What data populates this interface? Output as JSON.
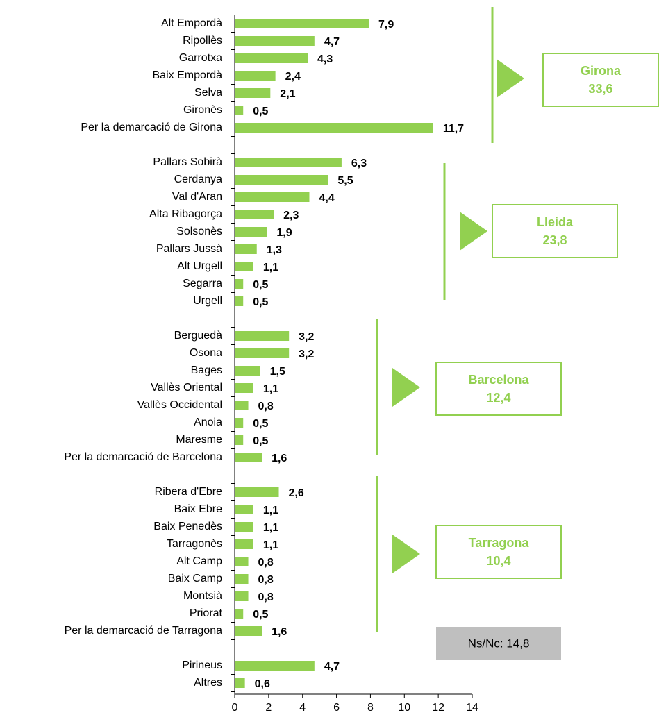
{
  "chart_data": {
    "type": "barh",
    "categories": [
      "Alt Empordà",
      "Ripollès",
      "Garrotxa",
      "Baix Empordà",
      "Selva",
      "Gironès",
      "Per la demarcació de Girona",
      null,
      "Pallars Sobirà",
      "Cerdanya",
      "Val d'Aran",
      "Alta Ribagorça",
      "Solsonès",
      "Pallars Jussà",
      "Alt Urgell",
      "Segarra",
      "Urgell",
      null,
      "Berguedà",
      "Osona",
      "Bages",
      "Vallès Oriental",
      "Vallès Occidental",
      "Anoia",
      "Maresme",
      "Per la demarcació de Barcelona",
      null,
      "Ribera d'Ebre",
      "Baix Ebre",
      "Baix Penedès",
      "Tarragonès",
      "Alt Camp",
      "Baix Camp",
      "Montsià",
      "Priorat",
      "Per la demarcació de Tarragona",
      null,
      "Pirineus",
      "Altres"
    ],
    "values": [
      7.9,
      4.7,
      4.3,
      2.4,
      2.1,
      0.5,
      11.7,
      null,
      6.3,
      5.5,
      4.4,
      2.3,
      1.9,
      1.3,
      1.1,
      0.5,
      0.5,
      null,
      3.2,
      3.2,
      1.5,
      1.1,
      0.8,
      0.5,
      0.5,
      1.6,
      null,
      2.6,
      1.1,
      1.1,
      1.1,
      0.8,
      0.8,
      0.8,
      0.5,
      1.6,
      null,
      4.7,
      0.6
    ],
    "value_labels": [
      "7,9",
      "4,7",
      "4,3",
      "2,4",
      "2,1",
      "0,5",
      "11,7",
      null,
      "6,3",
      "5,5",
      "4,4",
      "2,3",
      "1,9",
      "1,3",
      "1,1",
      "0,5",
      "0,5",
      null,
      "3,2",
      "3,2",
      "1,5",
      "1,1",
      "0,8",
      "0,5",
      "0,5",
      "1,6",
      null,
      "2,6",
      "1,1",
      "1,1",
      "1,1",
      "0,8",
      "0,8",
      "0,8",
      "0,5",
      "1,6",
      null,
      "4,7",
      "0,6"
    ],
    "color": "#92d050",
    "xlim": [
      0,
      14
    ],
    "xticks": [
      0,
      2,
      4,
      6,
      8,
      10,
      12,
      14
    ],
    "groups": [
      {
        "name": "Girona",
        "total": "33,6"
      },
      {
        "name": "Lleida",
        "total": "23,8"
      },
      {
        "name": "Barcelona",
        "total": "12,4"
      },
      {
        "name": "Tarragona",
        "total": "10,4"
      }
    ],
    "note": "Ns/Nc: 14,8"
  }
}
